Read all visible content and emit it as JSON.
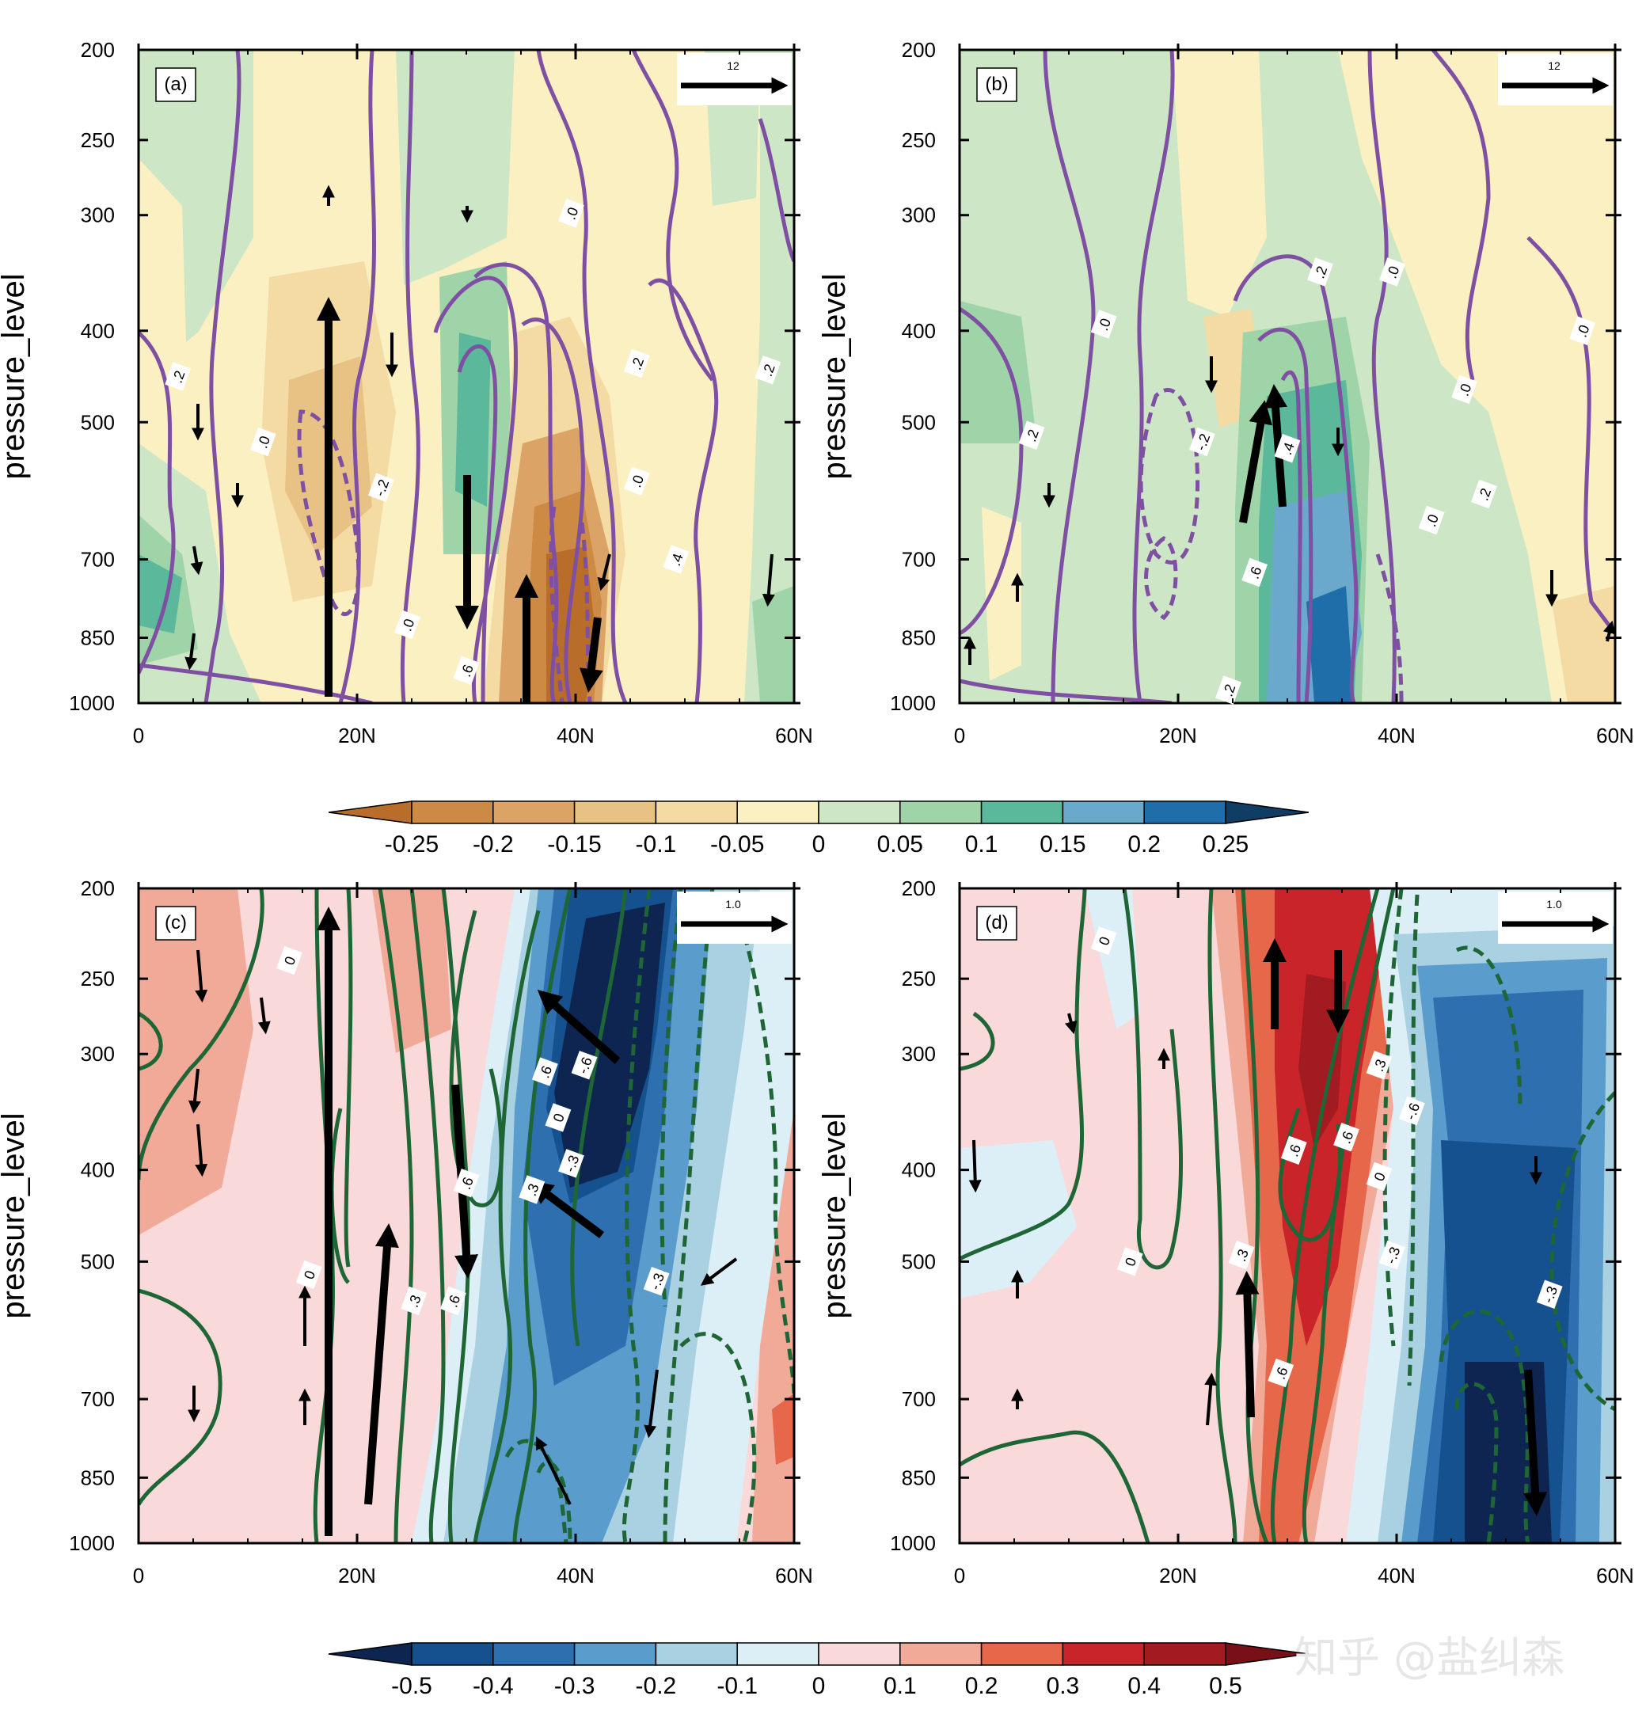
{
  "figure": {
    "watermark": "知乎 @盐纠森"
  },
  "chart_data": [
    {
      "type": "heatmap",
      "panel_label": "(a)",
      "ylabel": "pressure_level",
      "xlabel": "",
      "y_ticks": [
        "200",
        "250",
        "300",
        "400",
        "500",
        "700",
        "850",
        "1000"
      ],
      "y_log_scale": true,
      "x_ticks": [
        "0",
        "20N",
        "40N",
        "60N"
      ],
      "xlim": [
        0,
        60
      ],
      "ylim": [
        1000,
        200
      ],
      "reference_vector": "12",
      "contour_labels": [
        ".0",
        ".2",
        ".4",
        ".6",
        "-.2",
        ".0",
        ".2",
        ".0",
        ".2",
        ".0"
      ],
      "colorbar": "top"
    },
    {
      "type": "heatmap",
      "panel_label": "(b)",
      "ylabel": "pressure_level",
      "xlabel": "",
      "y_ticks": [
        "200",
        "250",
        "300",
        "400",
        "500",
        "700",
        "850",
        "1000"
      ],
      "y_log_scale": true,
      "x_ticks": [
        "0",
        "20N",
        "40N",
        "60N"
      ],
      "xlim": [
        0,
        60
      ],
      "ylim": [
        1000,
        200
      ],
      "reference_vector": "12",
      "contour_labels": [
        ".0",
        ".2",
        ".2",
        ".0",
        "-.2",
        ".4",
        ".6",
        ".2",
        ".0",
        ".2",
        ".0",
        ".0"
      ],
      "colorbar": "top"
    },
    {
      "type": "heatmap",
      "panel_label": "(c)",
      "ylabel": "pressure_level",
      "xlabel": "",
      "y_ticks": [
        "200",
        "250",
        "300",
        "400",
        "500",
        "700",
        "850",
        "1000"
      ],
      "y_log_scale": true,
      "x_ticks": [
        "0",
        "20N",
        "40N",
        "60N"
      ],
      "xlim": [
        0,
        60
      ],
      "ylim": [
        1000,
        200
      ],
      "reference_vector": "1.0",
      "contour_labels": [
        "0",
        "0",
        ".3",
        ".6",
        ".6",
        ".6",
        "-.6",
        "0",
        "-.3",
        ".3",
        "-.3"
      ],
      "colorbar": "bottom"
    },
    {
      "type": "heatmap",
      "panel_label": "(d)",
      "ylabel": "pressure_level",
      "xlabel": "",
      "y_ticks": [
        "200",
        "250",
        "300",
        "400",
        "500",
        "700",
        "850",
        "1000"
      ],
      "y_log_scale": true,
      "x_ticks": [
        "0",
        "20N",
        "40N",
        "60N"
      ],
      "xlim": [
        0,
        60
      ],
      "ylim": [
        1000,
        200
      ],
      "reference_vector": "1.0",
      "contour_labels": [
        "0",
        "0",
        ".3",
        ".6",
        ".6",
        ".3",
        "-.6",
        "0",
        ".6",
        "-.3",
        "-.3"
      ],
      "colorbar": "bottom"
    }
  ],
  "colorbars": [
    {
      "labels": [
        "-0.25",
        "-0.2",
        "-0.15",
        "-0.1",
        "-0.05",
        "0",
        "0.05",
        "0.1",
        "0.15",
        "0.2",
        "0.25"
      ],
      "colors": [
        "#b86e2a",
        "#cc8a44",
        "#dba366",
        "#e8c285",
        "#f3dba3",
        "#fbf0c1",
        "#cde6c5",
        "#9fd4a8",
        "#5cb89a",
        "#6aa8cc",
        "#1f6eaa",
        "#0f3d63"
      ]
    },
    {
      "labels": [
        "-0.5",
        "-0.4",
        "-0.3",
        "-0.2",
        "-0.1",
        "0",
        "0.1",
        "0.2",
        "0.3",
        "0.4",
        "0.5"
      ],
      "colors": [
        "#0d2550",
        "#15508f",
        "#2e6fb0",
        "#5a9ccb",
        "#a9d1e2",
        "#dceef6",
        "#f9d9d9",
        "#f1aa98",
        "#e6674a",
        "#c9242a",
        "#a11b20",
        "#7a1017"
      ]
    }
  ]
}
